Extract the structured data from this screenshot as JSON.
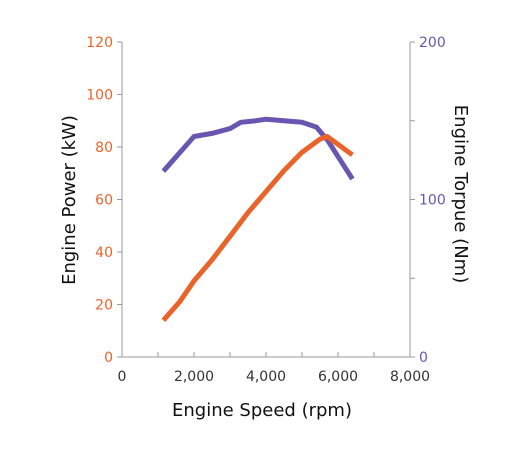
{
  "chart_data": {
    "type": "line",
    "xlabel": "Engine Speed (rpm)",
    "ylabel_left": "Engine Power (kW)",
    "ylabel_right": "Engine Torpue (Nm)",
    "xlim": [
      0,
      8000
    ],
    "ylim_left": [
      0,
      120
    ],
    "ylim_right": [
      0,
      200
    ],
    "x_ticks": [
      "0",
      "2,000",
      "4,000",
      "6,000",
      "8,000"
    ],
    "y_left_ticks": [
      "0",
      "20",
      "40",
      "60",
      "80",
      "100",
      "120"
    ],
    "y_right_ticks": [
      "0",
      "100",
      "200"
    ],
    "grid": false,
    "colors": {
      "power": "#e8642a",
      "torque": "#6a56b0",
      "axis": "#999999"
    },
    "series": [
      {
        "axis": "right",
        "color": "#6a56b0",
        "x": [
          1150,
          2000,
          2500,
          3000,
          3300,
          3700,
          4000,
          4500,
          5000,
          5400,
          5700,
          6400
        ],
        "y": [
          118,
          140,
          142,
          145,
          149,
          150,
          151,
          150,
          149,
          146,
          138,
          113
        ]
      },
      {
        "axis": "left",
        "color": "#e8642a",
        "x": [
          1150,
          1600,
          2000,
          2500,
          3000,
          3500,
          4000,
          4500,
          5000,
          5500,
          5700,
          6000,
          6400
        ],
        "y": [
          14,
          21,
          29,
          37,
          46,
          55,
          63,
          71,
          78,
          83,
          84,
          81,
          77
        ]
      }
    ]
  }
}
